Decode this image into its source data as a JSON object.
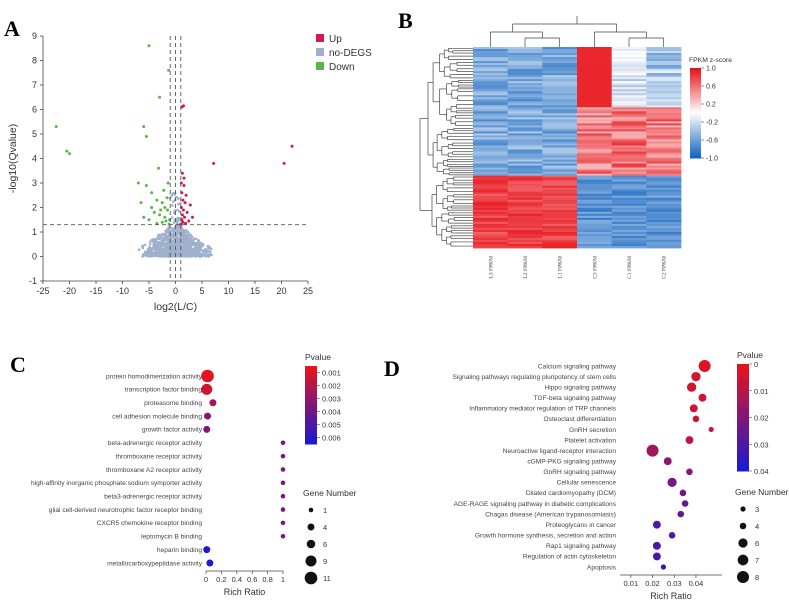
{
  "panels": {
    "a": "A",
    "b": "B",
    "c": "C",
    "d": "D"
  },
  "colors": {
    "up": "#d6174b",
    "nodeg": "#9fb1cc",
    "down": "#57b847",
    "heat_low": "#1565c0",
    "heat_mid": "#ffffff",
    "heat_high": "#e8141b"
  },
  "chart_data": [
    {
      "id": "volcano",
      "type": "scatter",
      "title": "",
      "xlabel": "log2(L/C)",
      "ylabel": "-log10(Qvalue)",
      "xlim": [
        -25,
        25
      ],
      "ylim": [
        -1,
        9
      ],
      "xticks": [
        -25,
        -20,
        -15,
        -10,
        -5,
        0,
        5,
        10,
        15,
        20,
        25
      ],
      "yticks": [
        -1,
        0,
        1,
        2,
        3,
        4,
        5,
        6,
        7,
        8,
        9
      ],
      "threshold_y": 1.3,
      "threshold_x": [
        -1,
        0,
        1
      ],
      "legend": [
        "Up",
        "no-DEGS",
        "Down"
      ],
      "series": [
        {
          "name": "Up",
          "points": [
            [
              1.2,
              6.1
            ],
            [
              1.5,
              6.15
            ],
            [
              7.2,
              3.8
            ],
            [
              20.5,
              3.8
            ],
            [
              22,
              4.5
            ],
            [
              1.3,
              3.4
            ],
            [
              1.1,
              3.0
            ],
            [
              1.6,
              2.9
            ],
            [
              1.2,
              2.6
            ],
            [
              2.0,
              2.5
            ],
            [
              1.4,
              2.3
            ],
            [
              1.8,
              2.2
            ],
            [
              1.1,
              2.0
            ],
            [
              1.5,
              1.9
            ],
            [
              2.2,
              1.8
            ],
            [
              1.3,
              1.7
            ],
            [
              1.7,
              1.6
            ],
            [
              1.2,
              1.5
            ],
            [
              2.5,
              1.45
            ],
            [
              1.4,
              1.4
            ],
            [
              1.9,
              1.35
            ],
            [
              1.1,
              1.32
            ],
            [
              2.8,
              2.1
            ],
            [
              3.2,
              1.6
            ],
            [
              1.6,
              3.2
            ]
          ]
        },
        {
          "name": "Down",
          "points": [
            [
              -22.5,
              5.3
            ],
            [
              -20.5,
              4.3
            ],
            [
              -20,
              4.2
            ],
            [
              -6,
              5.3
            ],
            [
              -5.5,
              4.9
            ],
            [
              -3,
              6.5
            ],
            [
              -5,
              8.6
            ],
            [
              -1.3,
              7.6
            ],
            [
              -7,
              3.0
            ],
            [
              -5.5,
              2.9
            ],
            [
              -4.5,
              2.6
            ],
            [
              -3.5,
              2.3
            ],
            [
              -2.5,
              2.2
            ],
            [
              -2,
              2.0
            ],
            [
              -1.5,
              1.9
            ],
            [
              -4,
              1.8
            ],
            [
              -3,
              1.7
            ],
            [
              -2,
              1.6
            ],
            [
              -6,
              1.6
            ],
            [
              -5,
              1.5
            ],
            [
              -1.8,
              1.45
            ],
            [
              -2.5,
              1.4
            ],
            [
              -3.5,
              1.35
            ],
            [
              -1.2,
              1.32
            ],
            [
              -4.5,
              2.0
            ],
            [
              -1.6,
              2.4
            ],
            [
              -2.2,
              2.7
            ],
            [
              -1.4,
              3.0
            ],
            [
              -3.2,
              3.6
            ],
            [
              -1.1,
              1.5
            ],
            [
              -6.5,
              2.2
            ],
            [
              -2.8,
              1.9
            ]
          ]
        },
        {
          "name": "no-DEGS",
          "points": []
        }
      ]
    },
    {
      "id": "heatmap",
      "type": "heatmap",
      "columns": [
        "L3_FPKM",
        "L2_FPKM",
        "L1_FPKM",
        "C3_FPKM",
        "C1_FPKM",
        "C2_FPKM"
      ],
      "rows": 100,
      "legend_title": "FPKM z-score",
      "legend_ticks": [
        "1.0",
        "0.6",
        "0.2",
        "-0.2",
        "-0.6",
        "-1.0"
      ],
      "zlim": [
        -1,
        1
      ]
    },
    {
      "id": "go_bubble",
      "type": "scatter",
      "xlabel": "Rich Ratio",
      "xticks": [
        "0",
        "0.2",
        "0.4",
        "0.6",
        "0.8",
        "1"
      ],
      "xlim": [
        0,
        1
      ],
      "color_title": "Pvalue",
      "color_ticks": [
        "0.001",
        "0.002",
        "0.003",
        "0.004",
        "0.005",
        "0.006"
      ],
      "clim": [
        0.0005,
        0.0065
      ],
      "size_title": "Gene Number",
      "size_ticks": [
        "1",
        "4",
        "6",
        "9",
        "11"
      ],
      "categories": [
        "protein homodimerization activity",
        "transcription factor binding",
        "proteasome binding",
        "cell adhesion molecule binding",
        "growth factor activity",
        "beta-adrenergic receptor activity",
        "thromboxane receptor activity",
        "thromboxane A2 receptor activity",
        "high-affinity inorganic phosphate:sodium symporter activity",
        "beta3-adrenergic receptor activity",
        "glial cell-derived neurotrophic factor receptor binding",
        "CXCR5 chemokine receptor binding",
        "leptomycin B binding",
        "heparin binding",
        "metallocarboxypeptidase activity"
      ],
      "rich_ratio": [
        0.02,
        0.01,
        0.09,
        0.02,
        0.01,
        1,
        1,
        1,
        1,
        1,
        1,
        1,
        1,
        0.01,
        0.05
      ],
      "pvalue": [
        0.0007,
        0.0013,
        0.0025,
        0.0035,
        0.0036,
        0.0038,
        0.0037,
        0.0038,
        0.0038,
        0.0037,
        0.0038,
        0.0038,
        0.0037,
        0.0063,
        0.0062
      ],
      "gene_number": [
        11,
        9,
        4,
        4,
        4,
        1,
        1,
        1,
        1,
        1,
        1,
        1,
        1,
        4,
        4
      ]
    },
    {
      "id": "kegg_bubble",
      "type": "scatter",
      "xlabel": "Rich Ratio",
      "xticks": [
        "0.01",
        "0.02",
        "0.03",
        "0.04"
      ],
      "xlim": [
        0.005,
        0.052
      ],
      "color_title": "Pvalue",
      "color_ticks": [
        "0",
        "0.01",
        "0.02",
        "0.03",
        "0.04"
      ],
      "clim": [
        0,
        0.04
      ],
      "size_title": "Gene Number",
      "size_ticks": [
        "3",
        "4",
        "6",
        "7",
        "8"
      ],
      "categories": [
        "Calcium signaling pathway",
        "Signaling pathways regulating pluripotency of stem cells",
        "Hippo signaling pathway",
        "TGF-beta signaling pathway",
        "Inflammatory mediator regulation of TRP channels",
        "Osteoclast differentiation",
        "GnRH secretion",
        "Platelet activation",
        "Neuroactive ligand-receptor interaction",
        "cGMP-PKG signaling pathway",
        "GnRH signaling pathway",
        "Cellular senescence",
        "Dilated cardiomyopathy (DCM)",
        "AGE-RAGE signaling pathway in diabetic complications",
        "Chagas disease (American trypanosomiasis)",
        "Proteoglycans in cancer",
        "Growth hormone synthesis, secretion and action",
        "Rap1 signaling pathway",
        "Regulation of actin cytoskeleton",
        "Apoptosis"
      ],
      "rich_ratio": [
        0.044,
        0.04,
        0.038,
        0.043,
        0.039,
        0.04,
        0.047,
        0.037,
        0.02,
        0.027,
        0.037,
        0.029,
        0.034,
        0.035,
        0.033,
        0.022,
        0.029,
        0.022,
        0.022,
        0.025
      ],
      "pvalue": [
        0.002,
        0.004,
        0.005,
        0.005,
        0.006,
        0.007,
        0.007,
        0.008,
        0.014,
        0.018,
        0.02,
        0.022,
        0.024,
        0.025,
        0.026,
        0.03,
        0.03,
        0.031,
        0.032,
        0.038
      ],
      "gene_number": [
        8,
        6,
        6,
        5,
        5,
        4,
        3,
        5,
        8,
        5,
        4,
        6,
        4,
        4,
        4,
        5,
        4,
        5,
        5,
        3
      ]
    }
  ]
}
